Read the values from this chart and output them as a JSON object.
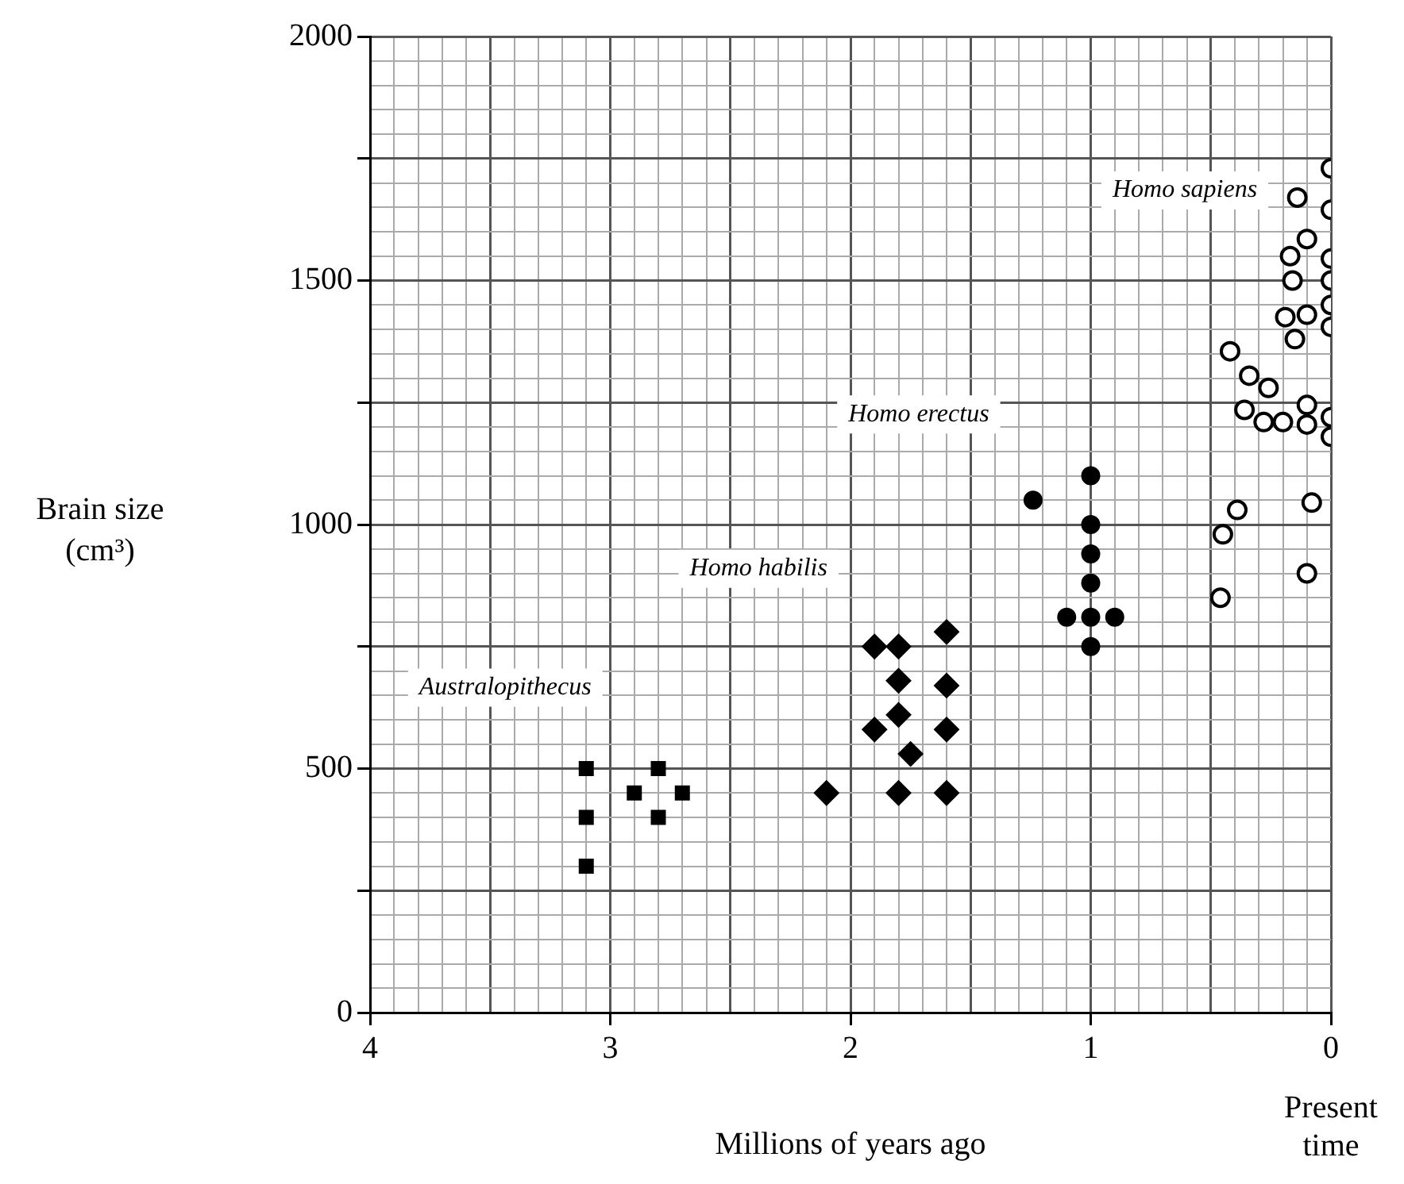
{
  "chart_data": {
    "type": "scatter",
    "xlabel": "Millions of years ago",
    "ylabel": "Brain size (cm³)",
    "xlim": [
      4,
      0
    ],
    "ylim": [
      0,
      2000
    ],
    "xticks": [
      {
        "value": 4,
        "label": "4"
      },
      {
        "value": 3.9,
        "label": null
      },
      {
        "value": 3.8,
        "label": null
      },
      {
        "value": 3.7,
        "label": null
      },
      {
        "value": 3.6,
        "label": null
      },
      {
        "value": 3.5,
        "label": null
      },
      {
        "value": 3.4,
        "label": null
      },
      {
        "value": 3.3,
        "label": null
      },
      {
        "value": 3.2,
        "label": null
      },
      {
        "value": 3.1,
        "label": null
      },
      {
        "value": 3,
        "label": "3"
      },
      {
        "value": 2.9,
        "label": null
      },
      {
        "value": 2.8,
        "label": null
      },
      {
        "value": 2.7,
        "label": null
      },
      {
        "value": 2.6,
        "label": null
      },
      {
        "value": 2.5,
        "label": null
      },
      {
        "value": 2.4,
        "label": null
      },
      {
        "value": 2.3,
        "label": null
      },
      {
        "value": 2.2,
        "label": null
      },
      {
        "value": 2.1,
        "label": null
      },
      {
        "value": 2,
        "label": "2"
      },
      {
        "value": 1.9,
        "label": null
      },
      {
        "value": 1.8,
        "label": null
      },
      {
        "value": 1.7,
        "label": null
      },
      {
        "value": 1.6,
        "label": null
      },
      {
        "value": 1.5,
        "label": null
      },
      {
        "value": 1.4,
        "label": null
      },
      {
        "value": 1.3,
        "label": null
      },
      {
        "value": 1.2,
        "label": null
      },
      {
        "value": 1.1,
        "label": null
      },
      {
        "value": 1,
        "label": "1"
      },
      {
        "value": 0.9,
        "label": null
      },
      {
        "value": 0.8,
        "label": null
      },
      {
        "value": 0.7,
        "label": null
      },
      {
        "value": 0.6,
        "label": null
      },
      {
        "value": 0.5,
        "label": null
      },
      {
        "value": 0.4,
        "label": null
      },
      {
        "value": 0.3,
        "label": null
      },
      {
        "value": 0.2,
        "label": null
      },
      {
        "value": 0.1,
        "label": null
      },
      {
        "value": 0,
        "label": "0"
      }
    ],
    "yticks": [
      0,
      {
        "value": 50,
        "label": null
      },
      {
        "value": 100,
        "label": null
      },
      {
        "value": 150,
        "label": null
      },
      {
        "value": 200,
        "label": null
      },
      {
        "value": 250,
        "label": null
      },
      {
        "value": 300,
        "label": null
      },
      {
        "value": 350,
        "label": null
      },
      {
        "value": 400,
        "label": null
      },
      {
        "value": 450,
        "label": null
      },
      500,
      {
        "value": 550,
        "label": null
      },
      {
        "value": 600,
        "label": null
      },
      {
        "value": 650,
        "label": null
      },
      {
        "value": 700,
        "label": null
      },
      {
        "value": 750,
        "label": null
      },
      {
        "value": 800,
        "label": null
      },
      {
        "value": 850,
        "label": null
      },
      {
        "value": 900,
        "label": null
      },
      {
        "value": 950,
        "label": null
      },
      1000,
      {
        "value": 1050,
        "label": null
      },
      {
        "value": 1100,
        "label": null
      },
      {
        "value": 1150,
        "label": null
      },
      {
        "value": 1200,
        "label": null
      },
      {
        "value": 1250,
        "label": null
      },
      {
        "value": 1300,
        "label": null
      },
      {
        "value": 1350,
        "label": null
      },
      {
        "value": 1400,
        "label": null
      },
      {
        "value": 1450,
        "label": null
      },
      1500,
      {
        "value": 1550,
        "label": null
      },
      {
        "value": 1600,
        "label": null
      },
      {
        "value": 1650,
        "label": null
      },
      {
        "value": 1700,
        "label": null
      },
      {
        "value": 1750,
        "label": null
      },
      {
        "value": 1800,
        "label": null
      },
      {
        "value": 1850,
        "label": null
      },
      {
        "value": 1900,
        "label": null
      },
      {
        "value": 1950,
        "label": null
      },
      2000
    ],
    "grid": true,
    "series": [
      {
        "name": "Australopithecus",
        "color": "#000000",
        "marker": "square",
        "x": [
          3.1,
          3.1,
          3.1,
          2.9,
          2.8,
          2.8,
          2.7
        ],
        "values": [
          500,
          400,
          300,
          450,
          500,
          400,
          450
        ]
      },
      {
        "name": "Homo habilis",
        "color": "#000000",
        "marker": "diamond",
        "x": [
          1.9,
          1.8,
          1.6,
          1.8,
          1.6,
          1.8,
          1.9,
          1.6,
          1.75,
          2.1,
          1.8,
          1.6
        ],
        "values": [
          750,
          750,
          780,
          680,
          670,
          610,
          580,
          580,
          530,
          450,
          450,
          450
        ]
      },
      {
        "name": "Homo erectus",
        "color": "#000000",
        "marker": "circle",
        "x": [
          1.24,
          1,
          1,
          1,
          1,
          1.1,
          1,
          0.9,
          1
        ],
        "values": [
          1050,
          1100,
          1000,
          940,
          880,
          810,
          810,
          810,
          750
        ]
      },
      {
        "name": "Homo sapiens",
        "color": "#000000",
        "marker": "circle",
        "x": [
          0,
          0.14,
          0,
          0.1,
          0.17,
          0,
          0.16,
          0,
          0.19,
          0.1,
          0,
          0,
          0.15,
          0.42,
          0.34,
          0.26,
          0.36,
          0.28,
          0.2,
          0.1,
          0.1,
          0,
          0,
          0.39,
          0.45,
          0.46,
          0.08,
          0.1
        ],
        "values": [
          1730,
          1670,
          1645,
          1585,
          1550,
          1545,
          1500,
          1500,
          1425,
          1430,
          1450,
          1405,
          1380,
          1355,
          1305,
          1280,
          1235,
          1210,
          1210,
          1245,
          1205,
          1220,
          1180,
          1030,
          980,
          850,
          1045,
          900
        ]
      }
    ],
    "annotations": [
      "Present time"
    ]
  }
}
